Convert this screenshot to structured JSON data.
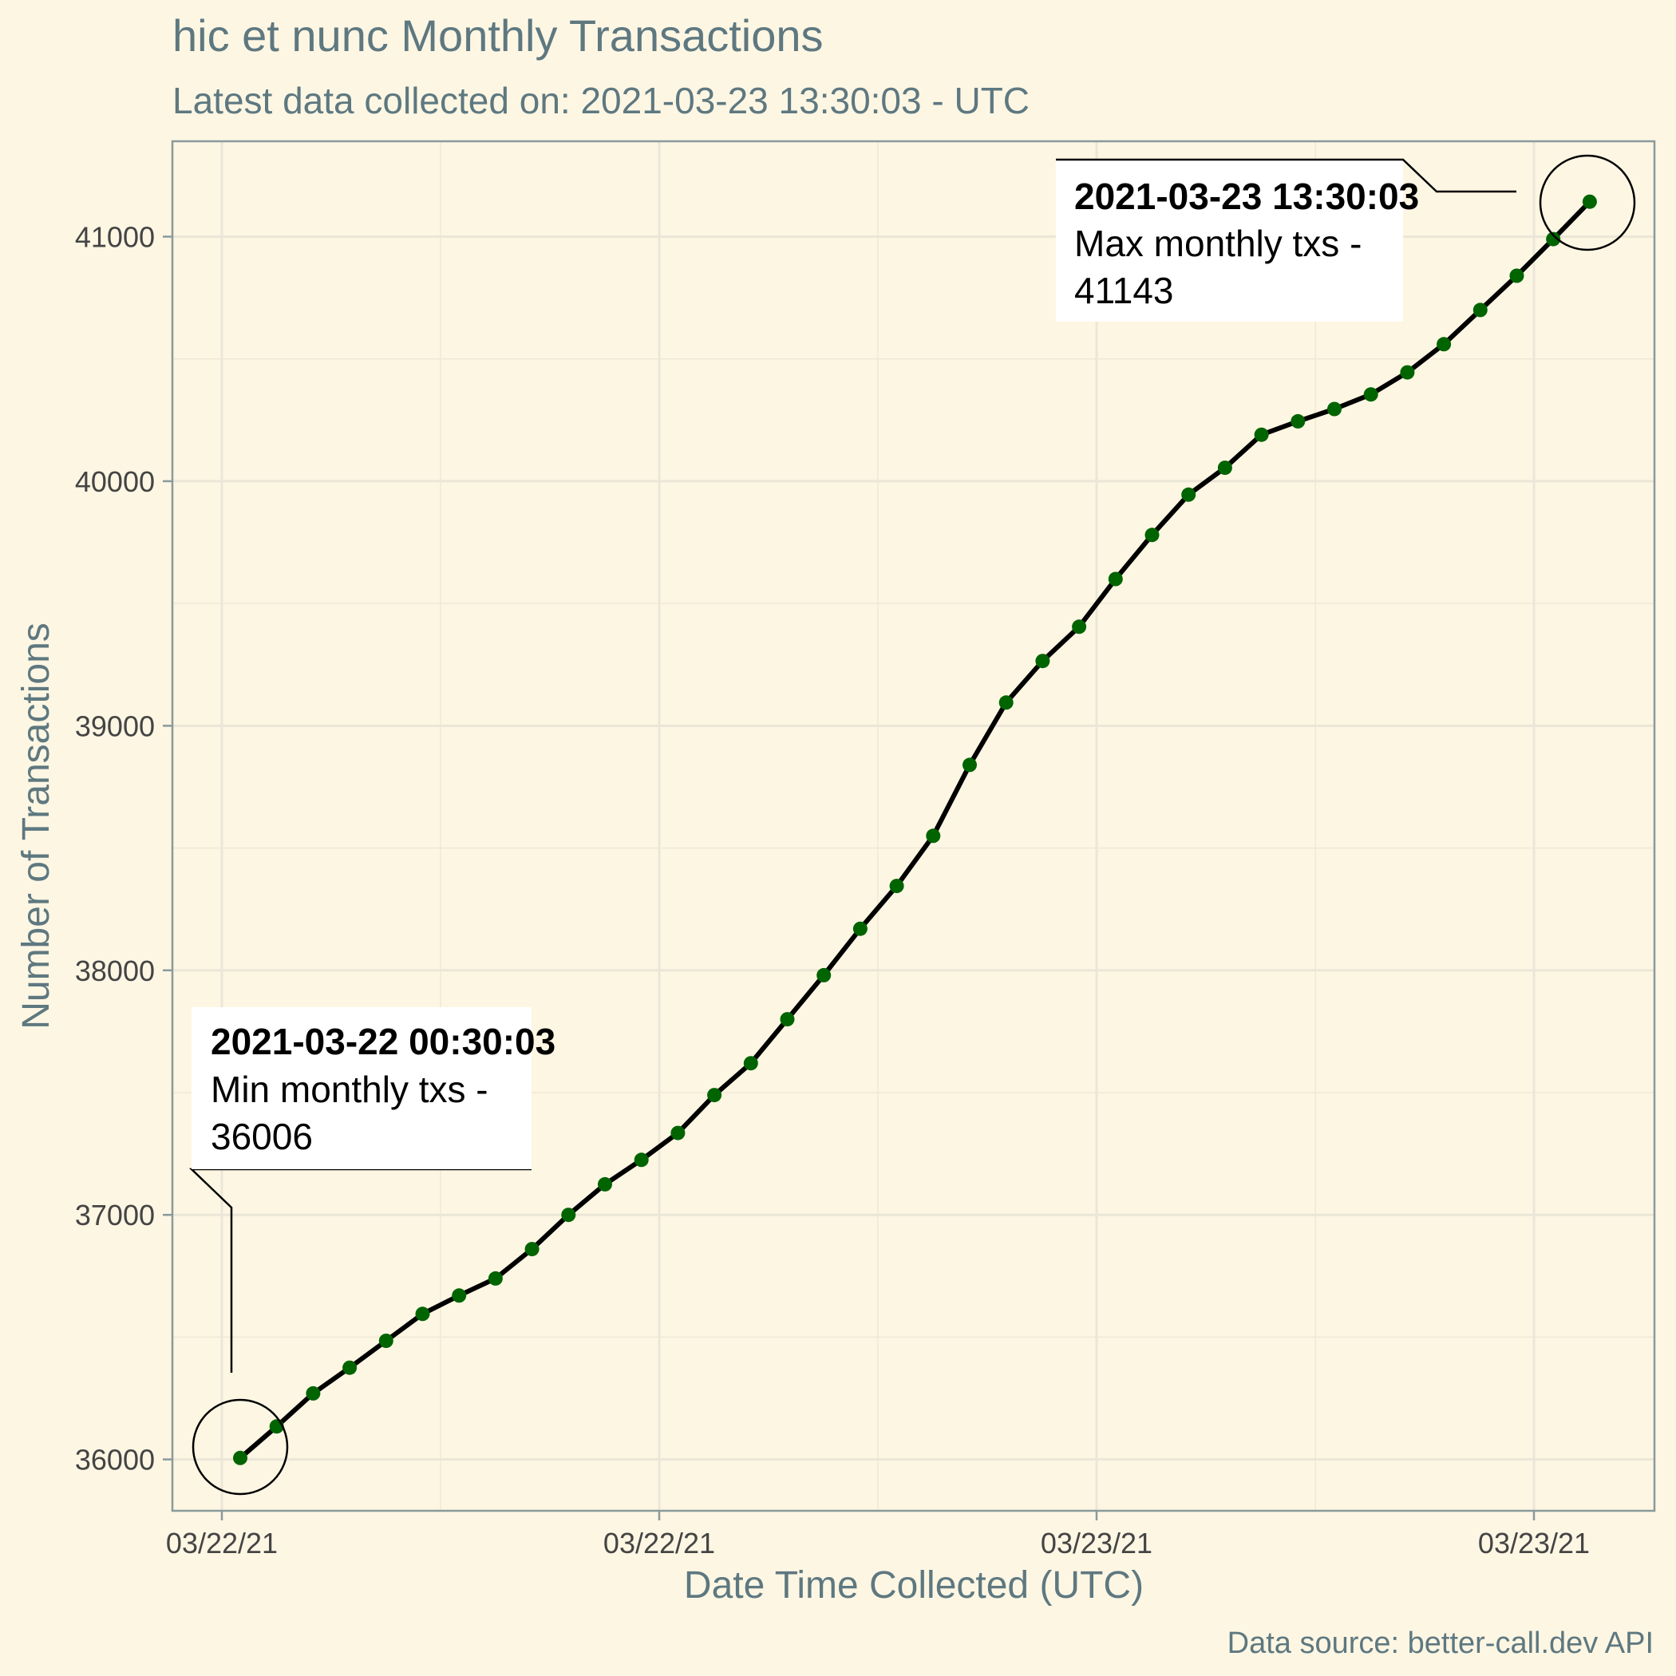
{
  "chart_data": {
    "type": "line",
    "title": "hic et nunc Monthly Transactions",
    "subtitle": "Latest data collected on: 2021-03-23 13:30:03  - UTC",
    "xlabel": "Date Time Collected (UTC)",
    "ylabel": "Number of Transactions",
    "caption": "Data source: better-call.dev API",
    "x_tick_labels": [
      "03/22/21",
      "03/22/21",
      "03/23/21",
      "03/23/21"
    ],
    "y_ticks": [
      36000,
      37000,
      38000,
      39000,
      40000,
      41000
    ],
    "ylim": [
      35790,
      41390
    ],
    "grid": true,
    "series": [
      {
        "color": "#006400",
        "line_color": "#000000",
        "x": [
          "2021-03-22 00:30:03",
          "2021-03-22 01:30:03",
          "2021-03-22 02:30:03",
          "2021-03-22 03:30:03",
          "2021-03-22 04:30:03",
          "2021-03-22 05:30:03",
          "2021-03-22 06:30:03",
          "2021-03-22 07:30:03",
          "2021-03-22 08:30:03",
          "2021-03-22 09:30:03",
          "2021-03-22 10:30:03",
          "2021-03-22 11:30:03",
          "2021-03-22 12:30:03",
          "2021-03-22 13:30:03",
          "2021-03-22 14:30:03",
          "2021-03-22 15:30:03",
          "2021-03-22 16:30:03",
          "2021-03-22 17:30:03",
          "2021-03-22 18:30:03",
          "2021-03-22 19:30:03",
          "2021-03-22 20:30:03",
          "2021-03-22 21:30:03",
          "2021-03-22 22:30:03",
          "2021-03-22 23:30:03",
          "2021-03-23 00:30:03",
          "2021-03-23 01:30:03",
          "2021-03-23 02:30:03",
          "2021-03-23 03:30:03",
          "2021-03-23 04:30:03",
          "2021-03-23 05:30:03",
          "2021-03-23 06:30:03",
          "2021-03-23 07:30:03",
          "2021-03-23 08:30:03",
          "2021-03-23 09:30:03",
          "2021-03-23 10:30:03",
          "2021-03-23 11:30:03",
          "2021-03-23 12:30:03",
          "2021-03-23 13:30:03"
        ],
        "values": [
          36006,
          36135,
          36270,
          36375,
          36485,
          36595,
          36670,
          36740,
          36860,
          37000,
          37125,
          37225,
          37335,
          37490,
          37620,
          37800,
          37980,
          38170,
          38345,
          38550,
          38840,
          39095,
          39265,
          39405,
          39600,
          39780,
          39945,
          40055,
          40190,
          40245,
          40295,
          40355,
          40445,
          40560,
          40700,
          40840,
          40990,
          41143
        ]
      }
    ],
    "annotations": [
      {
        "title": "2021-03-22 00:30:03",
        "text_line1": "Min monthly txs -",
        "text_line2": "36006"
      },
      {
        "title": "2021-03-23 13:30:03",
        "text_line1": "Max monthly txs -",
        "text_line2": "41143"
      }
    ]
  }
}
